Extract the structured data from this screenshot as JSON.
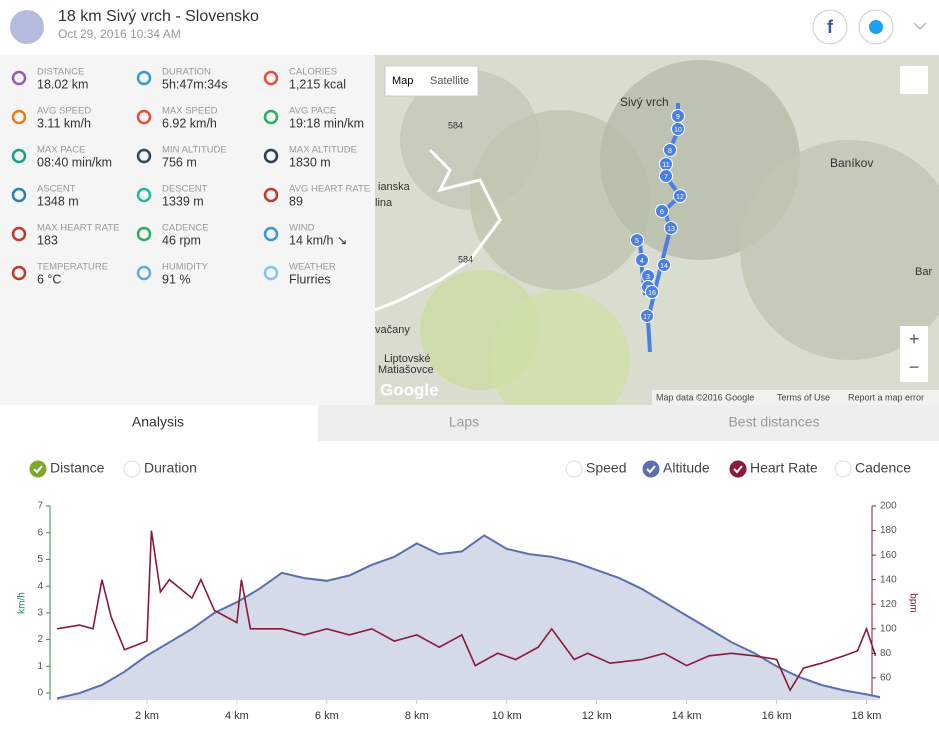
{
  "header": {
    "title": "18 km Sivý vrch - Slovensko",
    "date": "Oct 29, 2016 10:34 AM"
  },
  "stats": [
    {
      "label": "DISTANCE",
      "value": "18.02 km",
      "color": "#9b59b6"
    },
    {
      "label": "DURATION",
      "value": "5h:47m:34s",
      "color": "#3498db"
    },
    {
      "label": "CALORIES",
      "value": "1,215 kcal",
      "color": "#e74c3c"
    },
    {
      "label": "AVG SPEED",
      "value": "3.11 km/h",
      "color": "#e67e22"
    },
    {
      "label": "MAX SPEED",
      "value": "6.92 km/h",
      "color": "#e74c3c"
    },
    {
      "label": "AVG PACE",
      "value": "19:18 min/km",
      "color": "#27ae60"
    },
    {
      "label": "MAX PACE",
      "value": "08:40 min/km",
      "color": "#16a085"
    },
    {
      "label": "MIN ALTITUDE",
      "value": "756 m",
      "color": "#34495e"
    },
    {
      "label": "MAX ALTITUDE",
      "value": "1830 m",
      "color": "#2c3e50"
    },
    {
      "label": "ASCENT",
      "value": "1348 m",
      "color": "#2980b9"
    },
    {
      "label": "DESCENT",
      "value": "1339 m",
      "color": "#1abc9c"
    },
    {
      "label": "AVG HEART RATE",
      "value": "89",
      "color": "#c0392b"
    },
    {
      "label": "MAX HEART RATE",
      "value": "183",
      "color": "#c0392b"
    },
    {
      "label": "CADENCE",
      "value": "46 rpm",
      "color": "#27ae60"
    },
    {
      "label": "WIND",
      "value": "14 km/h ↘",
      "color": "#3498db"
    },
    {
      "label": "TEMPERATURE",
      "value": "6 °C",
      "color": "#c0392b"
    },
    {
      "label": "HUMIDITY",
      "value": "91 %",
      "color": "#5dade2"
    },
    {
      "label": "WEATHER",
      "value": "Flurries",
      "color": "#85c1e9"
    }
  ],
  "map": {
    "buttons": [
      "Map",
      "Satellite"
    ],
    "places": [
      "Sivý vrch",
      "Baníkov",
      "584",
      "584",
      "Liptovské",
      "Matiašovce",
      "vačany",
      "ianska",
      "lina",
      "Bar",
      "Google"
    ],
    "markers": [
      "9",
      "10",
      "8",
      "11",
      "7",
      "12",
      "6",
      "13",
      "5",
      "4",
      "14",
      "3",
      "2",
      "16",
      "17"
    ],
    "footer": [
      "Map data ©2016 Google",
      "Terms of Use",
      "Report a map error"
    ],
    "zoom": [
      "+",
      "−"
    ]
  },
  "tabs": [
    "Analysis",
    "Laps",
    "Best distances"
  ],
  "x_toggles": [
    {
      "name": "Distance",
      "checked": true
    },
    {
      "name": "Duration",
      "checked": false
    }
  ],
  "y_toggles": [
    {
      "name": "Speed",
      "checked": false
    },
    {
      "name": "Altitude",
      "checked": true
    },
    {
      "name": "Heart Rate",
      "checked": true
    },
    {
      "name": "Cadence",
      "checked": false
    }
  ],
  "chart_data": {
    "type": "line",
    "ylabel": "km/h",
    "y2label": "bpm",
    "xlim": [
      0,
      18.3
    ],
    "xticks": [
      {
        "value": 2,
        "label": "2 km"
      },
      {
        "value": 4,
        "label": "4 km"
      },
      {
        "value": 6,
        "label": "6 km"
      },
      {
        "value": 8,
        "label": "8 km"
      },
      {
        "value": 10,
        "label": "10 km"
      },
      {
        "value": 12,
        "label": "12 km"
      },
      {
        "value": 14,
        "label": "14 km"
      },
      {
        "value": 16,
        "label": "16 km"
      },
      {
        "value": 18,
        "label": "18 km"
      }
    ],
    "ylim": [
      -0.26,
      7
    ],
    "yticks": [
      0,
      1,
      2,
      3,
      4,
      5,
      6,
      7
    ],
    "y2lim": [
      42,
      200
    ],
    "y2ticks": [
      60,
      80,
      100,
      120,
      140,
      160,
      180,
      200
    ],
    "series": [
      {
        "name": "Altitude",
        "color": "#5b6fad",
        "fill": "#d5dae8",
        "x": [
          0,
          0.5,
          1,
          1.5,
          2,
          2.5,
          3,
          3.5,
          4,
          4.5,
          5,
          5.5,
          6,
          6.5,
          7,
          7.5,
          8,
          8.5,
          9,
          9.5,
          10,
          10.5,
          11,
          11.5,
          12,
          12.5,
          13,
          13.5,
          14,
          14.5,
          15,
          15.5,
          16,
          16.5,
          17,
          17.5,
          18,
          18.3
        ],
        "values": [
          -0.2,
          0,
          0.3,
          0.8,
          1.4,
          1.9,
          2.4,
          3.0,
          3.4,
          3.9,
          4.5,
          4.3,
          4.2,
          4.4,
          4.8,
          5.1,
          5.6,
          5.2,
          5.3,
          5.9,
          5.4,
          5.2,
          5.1,
          4.9,
          4.6,
          4.3,
          3.9,
          3.4,
          2.9,
          2.4,
          1.9,
          1.5,
          1.0,
          0.6,
          0.3,
          0.1,
          -0.05,
          -0.15
        ]
      },
      {
        "name": "Heart Rate",
        "color": "#8b1a3a",
        "axis": "y2",
        "x": [
          0,
          0.5,
          0.8,
          1.0,
          1.2,
          1.5,
          2,
          2.1,
          2.3,
          2.5,
          3,
          3.2,
          3.5,
          4,
          4.1,
          4.3,
          5,
          5.5,
          6,
          6.5,
          7,
          7.5,
          8,
          8.5,
          9,
          9.3,
          9.8,
          10.2,
          10.7,
          11,
          11.5,
          11.8,
          12.3,
          13,
          13.5,
          14,
          14.5,
          15,
          15.5,
          16,
          16.3,
          16.6,
          17,
          17.5,
          17.8,
          18,
          18.2
        ],
        "values": [
          100,
          103,
          100,
          140,
          110,
          83,
          90,
          180,
          130,
          140,
          125,
          140,
          115,
          105,
          140,
          100,
          100,
          95,
          100,
          95,
          100,
          90,
          95,
          85,
          95,
          70,
          80,
          75,
          85,
          100,
          75,
          80,
          72,
          75,
          80,
          70,
          78,
          80,
          78,
          75,
          50,
          68,
          72,
          78,
          82,
          100,
          78
        ]
      }
    ]
  }
}
